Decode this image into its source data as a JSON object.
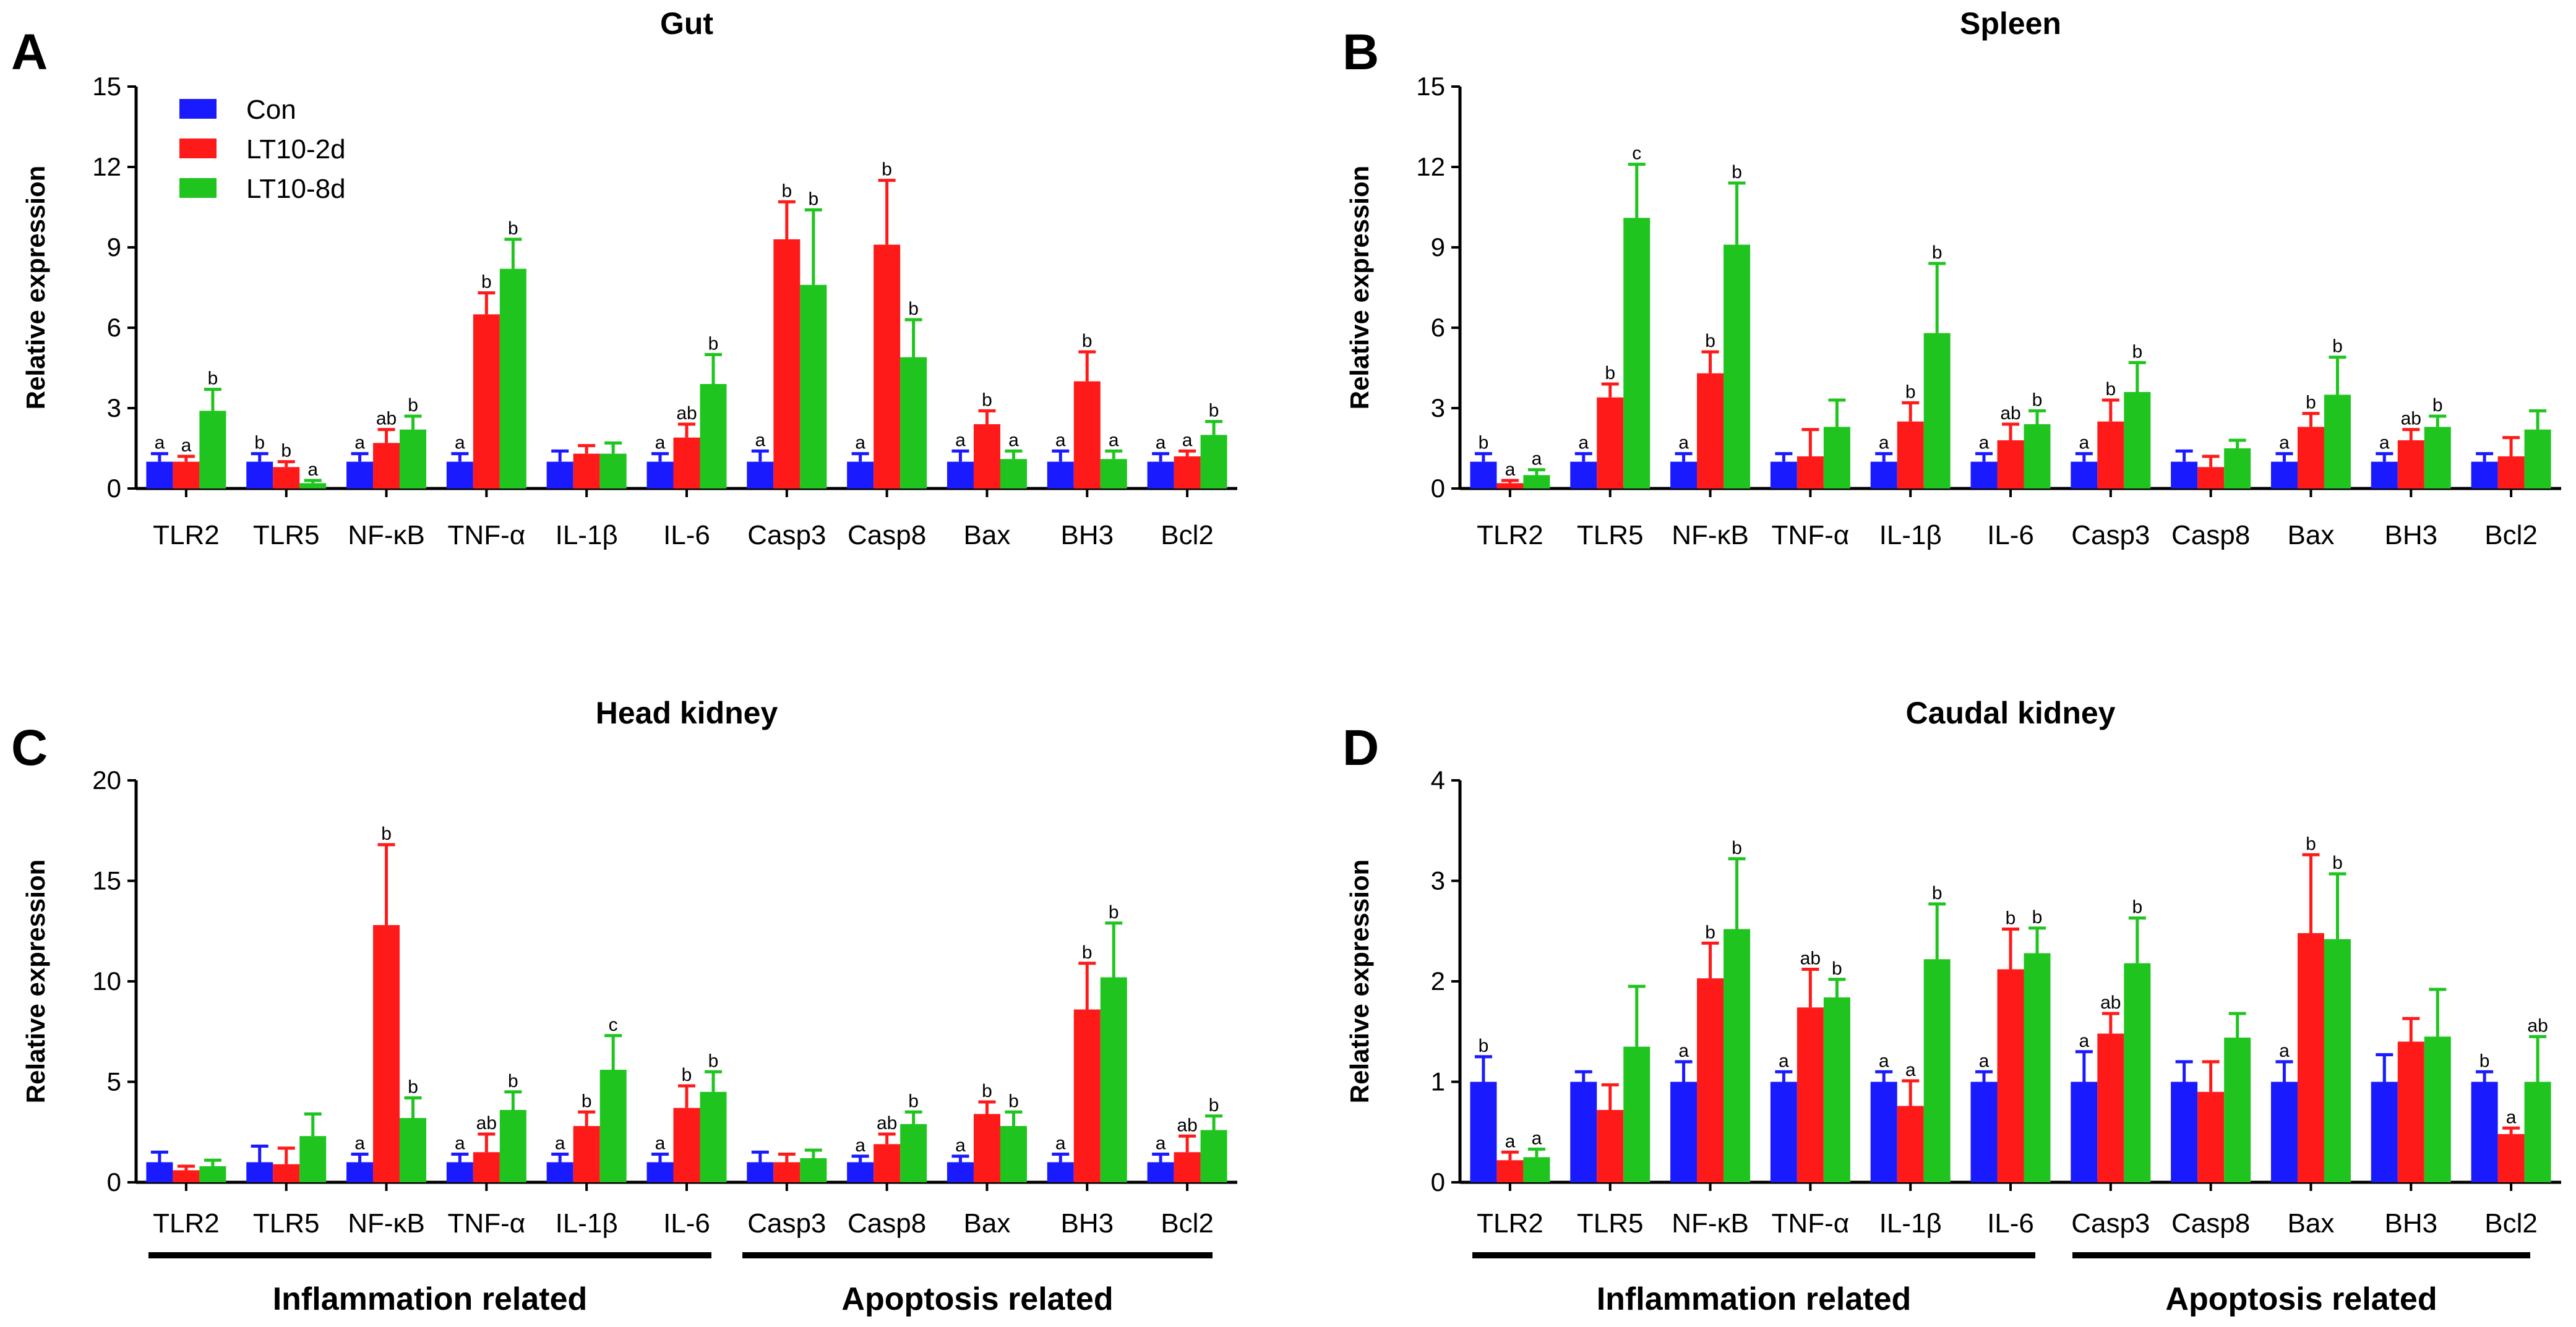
{
  "legend": {
    "entries": [
      {
        "name": "Con",
        "color": "#1a1aff"
      },
      {
        "name": "LT10-2d",
        "color": "#ff1a1a"
      },
      {
        "name": "LT10-8d",
        "color": "#1fc41f"
      }
    ]
  },
  "group_labels": {
    "inflammation": "Inflammation related",
    "apoptosis": "Apoptosis related"
  },
  "chart_data": [
    {
      "panel": "A",
      "title": "Gut",
      "type": "bar",
      "ylabel": "Relative expression",
      "ylim": [
        0,
        15
      ],
      "yticks": [
        0,
        3,
        6,
        9,
        12,
        15
      ],
      "ytick_labels": [
        "0",
        "3",
        "6",
        "9",
        "12",
        "15"
      ],
      "categories": [
        "TLR2",
        "TLR5",
        "NF-κB",
        "TNF-α",
        "IL-1β",
        "IL-6",
        "Casp3",
        "Casp8",
        "Bax",
        "BH3",
        "Bcl2"
      ],
      "series": [
        {
          "name": "Con",
          "values": [
            1,
            1,
            1,
            1,
            1,
            1,
            1,
            1,
            1,
            1,
            1
          ],
          "errors": [
            0.3,
            0.3,
            0.3,
            0.3,
            0.4,
            0.3,
            0.4,
            0.3,
            0.4,
            0.4,
            0.3
          ],
          "letters": [
            "a",
            "b",
            "a",
            "a",
            "",
            "a",
            "a",
            "a",
            "a",
            "a",
            "a"
          ]
        },
        {
          "name": "LT10-2d",
          "values": [
            1.0,
            0.8,
            1.7,
            6.5,
            1.3,
            1.9,
            9.3,
            9.1,
            2.4,
            4.0,
            1.2
          ],
          "errors": [
            0.2,
            0.2,
            0.5,
            0.8,
            0.3,
            0.5,
            1.4,
            2.4,
            0.5,
            1.1,
            0.2
          ],
          "letters": [
            "a",
            "b",
            "ab",
            "b",
            "",
            "ab",
            "b",
            "b",
            "b",
            "b",
            "a"
          ]
        },
        {
          "name": "LT10-8d",
          "values": [
            2.9,
            0.2,
            2.2,
            8.2,
            1.3,
            3.9,
            7.6,
            4.9,
            1.1,
            1.1,
            2.0
          ],
          "errors": [
            0.8,
            0.1,
            0.5,
            1.1,
            0.4,
            1.1,
            2.8,
            1.4,
            0.3,
            0.3,
            0.5
          ],
          "letters": [
            "b",
            "a",
            "b",
            "b",
            "",
            "b",
            "b",
            "b",
            "a",
            "a",
            "b"
          ]
        }
      ]
    },
    {
      "panel": "B",
      "title": "Spleen",
      "type": "bar",
      "ylabel": "Relative expression",
      "ylim": [
        0,
        15
      ],
      "yticks": [
        0,
        3,
        6,
        9,
        12,
        15
      ],
      "ytick_labels": [
        "0",
        "3",
        "6",
        "9",
        "12",
        "15"
      ],
      "categories": [
        "TLR2",
        "TLR5",
        "NF-κB",
        "TNF-α",
        "IL-1β",
        "IL-6",
        "Casp3",
        "Casp8",
        "Bax",
        "BH3",
        "Bcl2"
      ],
      "series": [
        {
          "name": "Con",
          "values": [
            1,
            1,
            1,
            1,
            1,
            1,
            1,
            1,
            1,
            1,
            1
          ],
          "errors": [
            0.3,
            0.3,
            0.3,
            0.3,
            0.3,
            0.3,
            0.3,
            0.4,
            0.3,
            0.3,
            0.3
          ],
          "letters": [
            "b",
            "a",
            "a",
            "",
            "a",
            "a",
            "a",
            "",
            "a",
            "a",
            ""
          ]
        },
        {
          "name": "LT10-2d",
          "values": [
            0.2,
            3.4,
            4.3,
            1.2,
            2.5,
            1.8,
            2.5,
            0.8,
            2.3,
            1.8,
            1.2
          ],
          "errors": [
            0.1,
            0.5,
            0.8,
            1.0,
            0.7,
            0.6,
            0.8,
            0.4,
            0.5,
            0.4,
            0.7
          ],
          "letters": [
            "a",
            "b",
            "b",
            "",
            "b",
            "ab",
            "b",
            "",
            "b",
            "ab",
            ""
          ]
        },
        {
          "name": "LT10-8d",
          "values": [
            0.5,
            10.1,
            9.1,
            2.3,
            5.8,
            2.4,
            3.6,
            1.5,
            3.5,
            2.3,
            2.2
          ],
          "errors": [
            0.2,
            2.0,
            2.3,
            1.0,
            2.6,
            0.5,
            1.1,
            0.3,
            1.4,
            0.4,
            0.7
          ],
          "letters": [
            "a",
            "c",
            "b",
            "",
            "b",
            "b",
            "b",
            "",
            "b",
            "b",
            ""
          ]
        }
      ]
    },
    {
      "panel": "C",
      "title": "Head kidney",
      "type": "bar",
      "ylabel": "Relative expression",
      "ylim": [
        0,
        20
      ],
      "yticks": [
        0,
        5,
        10,
        15,
        20
      ],
      "ytick_labels": [
        "0",
        "5",
        "10",
        "15",
        "20"
      ],
      "categories": [
        "TLR2",
        "TLR5",
        "NF-κB",
        "TNF-α",
        "IL-1β",
        "IL-6",
        "Casp3",
        "Casp8",
        "Bax",
        "BH3",
        "Bcl2"
      ],
      "series": [
        {
          "name": "Con",
          "values": [
            1,
            1,
            1,
            1,
            1,
            1,
            1,
            1,
            1,
            1,
            1
          ],
          "errors": [
            0.5,
            0.8,
            0.4,
            0.4,
            0.4,
            0.4,
            0.5,
            0.3,
            0.3,
            0.4,
            0.4
          ],
          "letters": [
            "",
            "",
            "a",
            "a",
            "a",
            "a",
            "",
            "a",
            "a",
            "a",
            "a"
          ]
        },
        {
          "name": "LT10-2d",
          "values": [
            0.6,
            0.9,
            12.8,
            1.5,
            2.8,
            3.7,
            1.0,
            1.9,
            3.4,
            8.6,
            1.5
          ],
          "errors": [
            0.2,
            0.8,
            4.0,
            0.9,
            0.7,
            1.1,
            0.4,
            0.5,
            0.6,
            2.3,
            0.8
          ],
          "letters": [
            "",
            "",
            "b",
            "ab",
            "b",
            "b",
            "",
            "ab",
            "b",
            "b",
            "ab"
          ]
        },
        {
          "name": "LT10-8d",
          "values": [
            0.8,
            2.3,
            3.2,
            3.6,
            5.6,
            4.5,
            1.2,
            2.9,
            2.8,
            10.2,
            2.6
          ],
          "errors": [
            0.3,
            1.1,
            1.0,
            0.9,
            1.7,
            1.0,
            0.4,
            0.6,
            0.7,
            2.7,
            0.7
          ],
          "letters": [
            "",
            "",
            "b",
            "b",
            "c",
            "b",
            "",
            "b",
            "b",
            "b",
            "b"
          ]
        }
      ]
    },
    {
      "panel": "D",
      "title": "Caudal kidney",
      "type": "bar",
      "ylabel": "Relative expression",
      "ylim": [
        0,
        4
      ],
      "yticks": [
        0,
        1,
        2,
        3,
        4
      ],
      "ytick_labels": [
        "0",
        "1",
        "2",
        "3",
        "4"
      ],
      "categories": [
        "TLR2",
        "TLR5",
        "NF-κB",
        "TNF-α",
        "IL-1β",
        "IL-6",
        "Casp3",
        "Casp8",
        "Bax",
        "BH3",
        "Bcl2"
      ],
      "series": [
        {
          "name": "Con",
          "values": [
            1,
            1,
            1,
            1,
            1,
            1,
            1,
            1,
            1,
            1,
            1
          ],
          "errors": [
            0.25,
            0.1,
            0.2,
            0.1,
            0.1,
            0.1,
            0.3,
            0.2,
            0.2,
            0.27,
            0.1
          ],
          "letters": [
            "b",
            "",
            "a",
            "a",
            "a",
            "a",
            "a",
            "",
            "a",
            "",
            "b"
          ]
        },
        {
          "name": "LT10-2d",
          "values": [
            0.22,
            0.72,
            2.03,
            1.74,
            0.76,
            2.12,
            1.48,
            0.9,
            2.48,
            1.4,
            0.48
          ],
          "errors": [
            0.08,
            0.25,
            0.35,
            0.38,
            0.25,
            0.4,
            0.2,
            0.3,
            0.78,
            0.23,
            0.06
          ],
          "letters": [
            "a",
            "",
            "b",
            "ab",
            "a",
            "b",
            "ab",
            "",
            "b",
            "",
            "a"
          ]
        },
        {
          "name": "LT10-8d",
          "values": [
            0.25,
            1.35,
            2.52,
            1.84,
            2.22,
            2.28,
            2.18,
            1.44,
            2.42,
            1.45,
            1.0
          ],
          "errors": [
            0.08,
            0.6,
            0.7,
            0.18,
            0.55,
            0.25,
            0.45,
            0.24,
            0.65,
            0.47,
            0.45
          ],
          "letters": [
            "a",
            "",
            "b",
            "b",
            "b",
            "b",
            "b",
            "",
            "b",
            "",
            "ab"
          ]
        }
      ]
    }
  ]
}
